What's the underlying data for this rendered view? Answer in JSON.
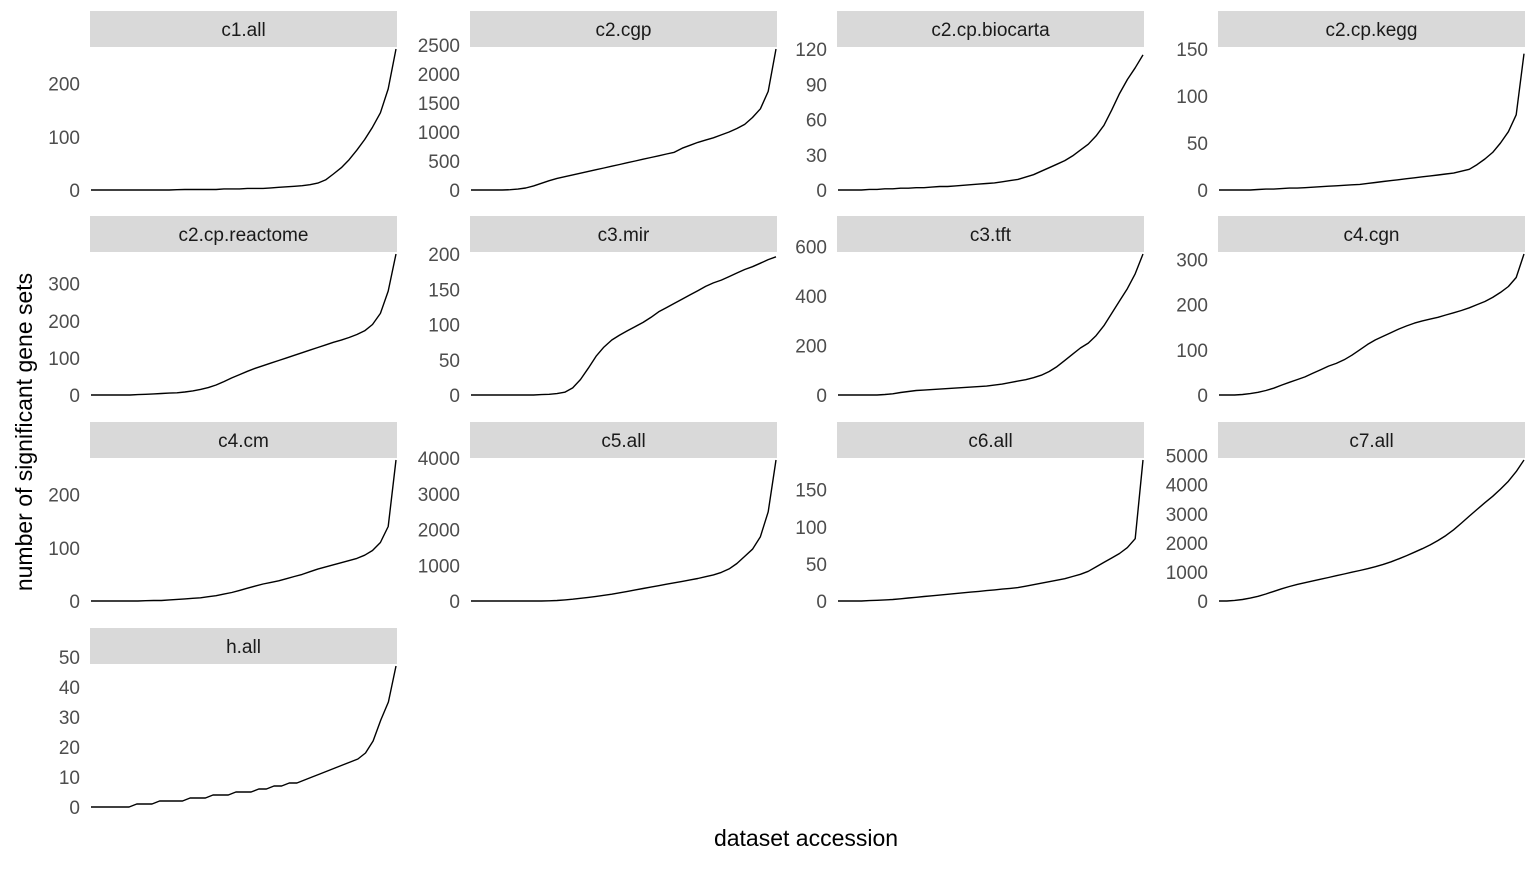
{
  "chart_data": {
    "type": "line",
    "xlabel": "dataset accession",
    "ylabel": "number of significant gene sets",
    "grid": false,
    "facet_columns": 4,
    "panels": [
      {
        "name": "c1.all",
        "ylim": [
          0,
          265
        ],
        "yticks": [
          0,
          100,
          200
        ],
        "y": [
          0,
          0,
          0,
          0,
          0,
          0,
          0,
          0,
          0,
          0,
          0,
          0.5,
          1,
          1,
          1,
          1,
          1,
          2,
          2,
          2,
          3,
          3,
          3,
          4,
          5,
          6,
          7,
          8,
          10,
          13,
          19,
          30,
          42,
          57,
          75,
          95,
          118,
          145,
          190,
          265
        ]
      },
      {
        "name": "c2.cgp",
        "ylim": [
          0,
          2430
        ],
        "yticks": [
          0,
          500,
          1000,
          1500,
          2000,
          2500
        ],
        "y": [
          0,
          0,
          0,
          0,
          0,
          5,
          15,
          35,
          70,
          115,
          160,
          200,
          230,
          260,
          290,
          320,
          350,
          380,
          410,
          440,
          470,
          500,
          530,
          560,
          590,
          620,
          650,
          720,
          770,
          820,
          860,
          900,
          950,
          1000,
          1060,
          1130,
          1250,
          1400,
          1700,
          2430
        ]
      },
      {
        "name": "c2.cp.biocarta",
        "ylim": [
          0,
          120
        ],
        "yticks": [
          0,
          30,
          60,
          90,
          120
        ],
        "y": [
          0,
          0,
          0,
          0,
          0.5,
          0.5,
          1,
          1,
          1.5,
          1.5,
          2,
          2,
          2.5,
          3,
          3,
          3.5,
          4,
          4.5,
          5,
          5.5,
          6,
          7,
          8,
          9,
          11,
          13,
          16,
          19,
          22,
          25,
          29,
          34,
          39,
          46,
          55,
          68,
          82,
          94,
          104,
          115
        ]
      },
      {
        "name": "c2.cp.kegg",
        "ylim": [
          0,
          150
        ],
        "yticks": [
          0,
          50,
          100,
          150
        ],
        "y": [
          0,
          0,
          0,
          0,
          0,
          0.5,
          1,
          1,
          1.5,
          2,
          2,
          2.5,
          3,
          3.5,
          4,
          4.5,
          5,
          5.5,
          6,
          7,
          8,
          9,
          10,
          11,
          12,
          13,
          14,
          15,
          16,
          17,
          18,
          20,
          22,
          27,
          33,
          40,
          50,
          62,
          80,
          145
        ]
      },
      {
        "name": "c2.cp.reactome",
        "ylim": [
          0,
          380
        ],
        "yticks": [
          0,
          100,
          200,
          300
        ],
        "y": [
          0,
          0,
          0,
          0,
          0,
          0,
          1,
          2,
          3,
          4,
          5,
          6,
          8,
          11,
          15,
          20,
          27,
          36,
          46,
          55,
          64,
          72,
          79,
          86,
          93,
          100,
          107,
          114,
          121,
          128,
          135,
          142,
          148,
          155,
          163,
          173,
          190,
          220,
          280,
          380
        ]
      },
      {
        "name": "c3.mir",
        "ylim": [
          0,
          200
        ],
        "yticks": [
          0,
          50,
          100,
          150,
          200
        ],
        "y": [
          0,
          0,
          0,
          0,
          0,
          0,
          0,
          0,
          0,
          0.5,
          1,
          2,
          4,
          10,
          22,
          38,
          55,
          68,
          78,
          85,
          91,
          97,
          103,
          110,
          118,
          124,
          130,
          136,
          142,
          148,
          154,
          159,
          163,
          168,
          173,
          178,
          182,
          187,
          192,
          196
        ]
      },
      {
        "name": "c3.tft",
        "ylim": [
          0,
          570
        ],
        "yticks": [
          0,
          200,
          400,
          600
        ],
        "y": [
          0,
          0,
          0,
          0,
          0,
          0,
          2,
          5,
          10,
          14,
          18,
          20,
          22,
          24,
          26,
          28,
          30,
          32,
          34,
          36,
          40,
          44,
          50,
          56,
          62,
          70,
          80,
          95,
          115,
          140,
          165,
          190,
          210,
          240,
          280,
          330,
          380,
          430,
          490,
          570
        ]
      },
      {
        "name": "c4.cgn",
        "ylim": [
          0,
          312
        ],
        "yticks": [
          0,
          100,
          200,
          300
        ],
        "y": [
          0,
          0,
          0,
          1,
          3,
          6,
          10,
          15,
          22,
          28,
          34,
          40,
          48,
          56,
          64,
          70,
          78,
          88,
          100,
          112,
          122,
          130,
          138,
          146,
          153,
          159,
          164,
          168,
          172,
          177,
          182,
          187,
          193,
          200,
          207,
          216,
          227,
          240,
          260,
          312
        ]
      },
      {
        "name": "c4.cm",
        "ylim": [
          0,
          265
        ],
        "yticks": [
          0,
          100,
          200
        ],
        "y": [
          0,
          0,
          0,
          0,
          0,
          0,
          0,
          0.5,
          1,
          1,
          2,
          3,
          4,
          5,
          6,
          8,
          10,
          13,
          16,
          20,
          24,
          28,
          32,
          35,
          38,
          42,
          46,
          50,
          55,
          60,
          64,
          68,
          72,
          76,
          80,
          86,
          95,
          110,
          140,
          265
        ]
      },
      {
        "name": "c5.all",
        "ylim": [
          0,
          3950
        ],
        "yticks": [
          0,
          1000,
          2000,
          3000,
          4000
        ],
        "y": [
          0,
          0,
          0,
          0,
          0,
          0,
          0,
          0,
          0,
          0,
          5,
          15,
          30,
          50,
          75,
          100,
          130,
          160,
          190,
          230,
          270,
          310,
          350,
          390,
          430,
          470,
          510,
          550,
          590,
          630,
          680,
          730,
          800,
          900,
          1050,
          1250,
          1450,
          1800,
          2500,
          3950
        ]
      },
      {
        "name": "c6.all",
        "ylim": [
          0,
          190
        ],
        "yticks": [
          0,
          50,
          100,
          150
        ],
        "y": [
          0,
          0,
          0,
          0,
          0.5,
          1,
          1.5,
          2,
          3,
          4,
          5,
          6,
          7,
          8,
          9,
          10,
          11,
          12,
          13,
          14,
          15,
          16,
          17,
          18,
          20,
          22,
          24,
          26,
          28,
          30,
          33,
          36,
          40,
          46,
          52,
          58,
          64,
          72,
          84,
          190
        ]
      },
      {
        "name": "c7.all",
        "ylim": [
          0,
          4850
        ],
        "yticks": [
          0,
          1000,
          2000,
          3000,
          4000,
          5000
        ],
        "y": [
          0,
          0,
          20,
          50,
          100,
          160,
          240,
          330,
          420,
          500,
          570,
          630,
          690,
          750,
          810,
          870,
          930,
          990,
          1050,
          1110,
          1180,
          1260,
          1350,
          1450,
          1560,
          1680,
          1800,
          1930,
          2080,
          2250,
          2450,
          2680,
          2920,
          3150,
          3380,
          3600,
          3850,
          4120,
          4450,
          4850
        ]
      },
      {
        "name": "h.all",
        "ylim": [
          0,
          47
        ],
        "yticks": [
          0,
          10,
          20,
          30,
          40,
          50
        ],
        "y": [
          0,
          0,
          0,
          0,
          0,
          0,
          1,
          1,
          1,
          2,
          2,
          2,
          2,
          3,
          3,
          3,
          4,
          4,
          4,
          5,
          5,
          5,
          6,
          6,
          7,
          7,
          8,
          8,
          9,
          10,
          11,
          12,
          13,
          14,
          15,
          16,
          18,
          22,
          29,
          35,
          47
        ]
      }
    ]
  }
}
